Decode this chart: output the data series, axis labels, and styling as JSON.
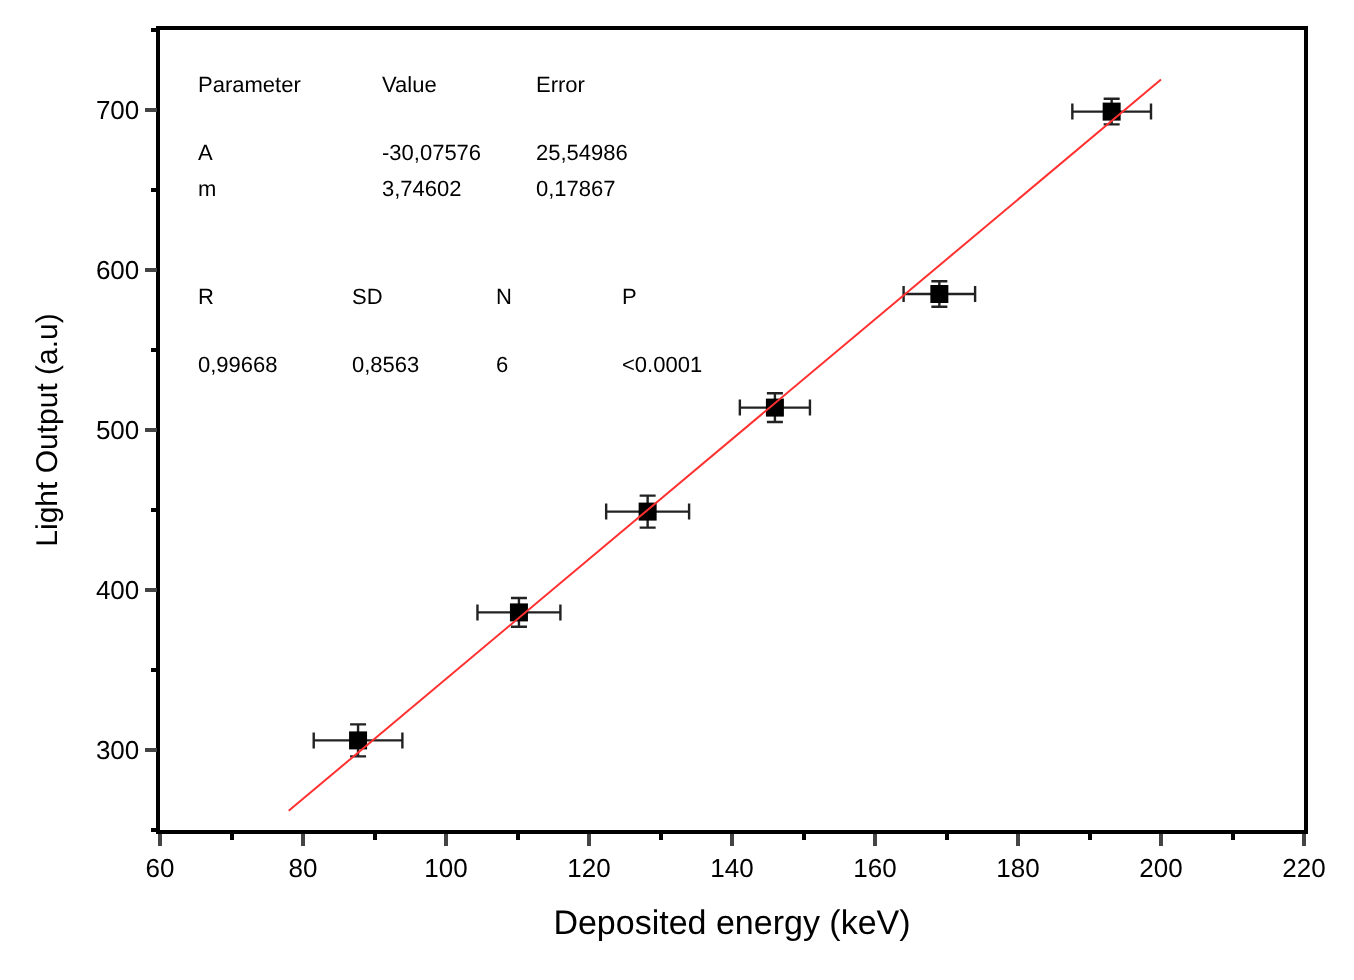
{
  "chart_data": {
    "type": "scatter",
    "xlabel": "Deposited energy (keV)",
    "ylabel": "Light Output (a.u)",
    "xlim": [
      60,
      220
    ],
    "xticks": [
      60,
      80,
      100,
      120,
      140,
      160,
      180,
      200,
      220
    ],
    "ylim": [
      250,
      750
    ],
    "yticks": [
      300,
      400,
      500,
      600,
      700
    ],
    "marker": "square",
    "series": [
      {
        "color": "#000000",
        "x": [
          87.7,
          110.2,
          128.2,
          146.0,
          169.0,
          193.1
        ],
        "values": [
          306,
          386,
          449,
          514,
          585,
          699
        ],
        "errors": [
          10,
          9,
          10,
          9,
          8,
          8
        ],
        "xerrors": [
          6.2,
          5.8,
          5.8,
          4.9,
          5,
          5.5
        ]
      },
      {
        "type": "line",
        "color": "#ff3030",
        "x": [
          78,
          200
        ],
        "values": [
          262,
          719
        ],
        "marker": "none",
        "line_style": "solid"
      }
    ],
    "annotations": [
      "Parameter",
      "Value",
      "Error",
      "A",
      "-30,07576",
      "25,54986",
      "m",
      "3,74602",
      "0,17867",
      "R",
      "SD",
      "N",
      "P",
      "0,99668",
      "0,8563",
      "6",
      "<0.0001"
    ]
  }
}
